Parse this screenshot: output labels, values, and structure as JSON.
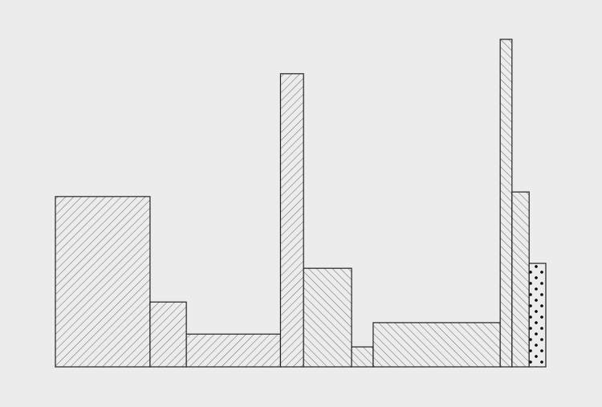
{
  "chart_data": {
    "type": "bar",
    "variable_width": true,
    "grid": false,
    "legend": "none",
    "colors": {
      "background": "#ececec",
      "bar_fill": "#ececec",
      "stroke": "#222222",
      "hatch": "#555555",
      "dots": "#000000"
    },
    "xlim": [
      0,
      100
    ],
    "ylim": [
      0,
      100
    ],
    "bars": [
      {
        "x0": 0.0,
        "x1": 19.3,
        "value": 52.0,
        "pattern": "hatch-back"
      },
      {
        "x0": 19.3,
        "x1": 26.7,
        "value": 19.8,
        "pattern": "hatch-back"
      },
      {
        "x0": 26.7,
        "x1": 45.9,
        "value": 10.0,
        "pattern": "hatch-back"
      },
      {
        "x0": 45.9,
        "x1": 50.6,
        "value": 89.5,
        "pattern": "hatch-back"
      },
      {
        "x0": 50.6,
        "x1": 60.4,
        "value": 30.1,
        "pattern": "hatch-forward"
      },
      {
        "x0": 60.4,
        "x1": 64.8,
        "value": 6.1,
        "pattern": "hatch-forward"
      },
      {
        "x0": 64.8,
        "x1": 90.7,
        "value": 13.5,
        "pattern": "hatch-forward"
      },
      {
        "x0": 90.7,
        "x1": 93.1,
        "value": 100.0,
        "pattern": "hatch-forward"
      },
      {
        "x0": 93.1,
        "x1": 96.6,
        "value": 53.4,
        "pattern": "hatch-forward"
      },
      {
        "x0": 96.6,
        "x1": 100.0,
        "value": 31.6,
        "pattern": "dots"
      }
    ]
  }
}
